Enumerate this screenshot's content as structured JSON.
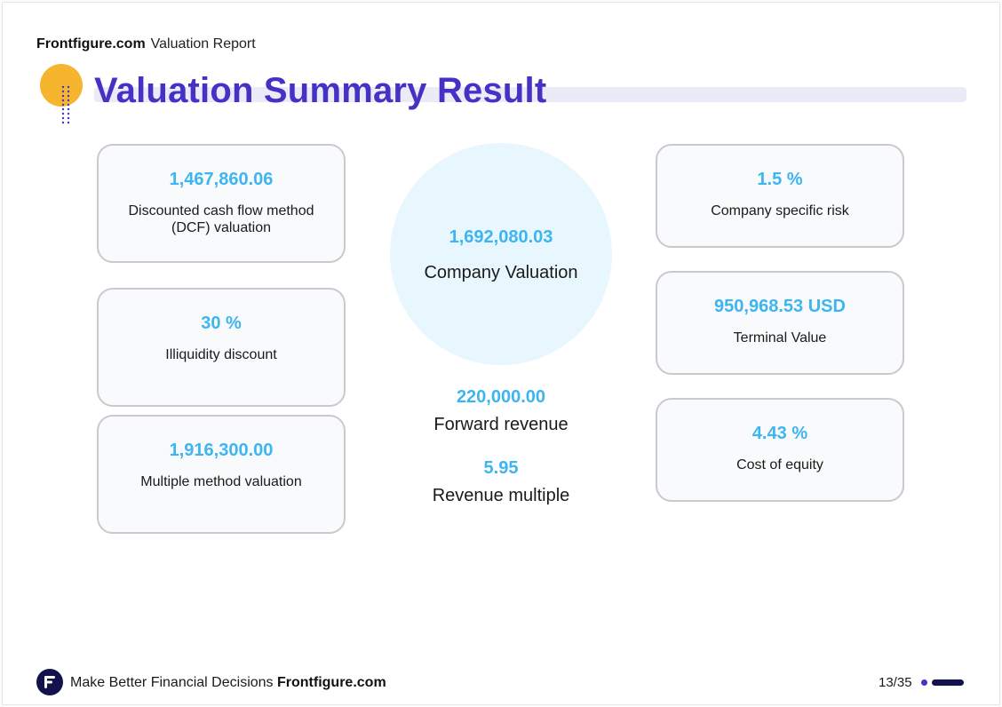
{
  "header": {
    "brand": "Frontfigure.com",
    "report_name": "Valuation Report"
  },
  "title": "Valuation Summary Result",
  "colors": {
    "accent": "#4432c4",
    "value": "#3db5f0",
    "decoration": "#f5b52e",
    "navy": "#14124d"
  },
  "cards_left": [
    {
      "value": "1,467,860.06",
      "label": "Discounted cash flow method (DCF) valuation"
    },
    {
      "value": "30 %",
      "label": "Illiquidity discount"
    },
    {
      "value": "1,916,300.00",
      "label": "Multiple method valuation"
    }
  ],
  "center": {
    "main": {
      "value": "1,692,080.03",
      "label": "Company Valuation"
    },
    "stats": [
      {
        "value": "220,000.00",
        "label": "Forward revenue"
      },
      {
        "value": "5.95",
        "label": "Revenue multiple"
      }
    ]
  },
  "cards_right": [
    {
      "value": "1.5 %",
      "label": "Company specific risk"
    },
    {
      "value": "950,968.53 USD",
      "label": "Terminal Value"
    },
    {
      "value": "4.43 %",
      "label": "Cost of equity"
    }
  ],
  "footer": {
    "logo_icon": "frontfigure-logo-icon",
    "tagline": "Make Better Financial Decisions",
    "brand": "Frontfigure.com",
    "page": "13/35"
  }
}
